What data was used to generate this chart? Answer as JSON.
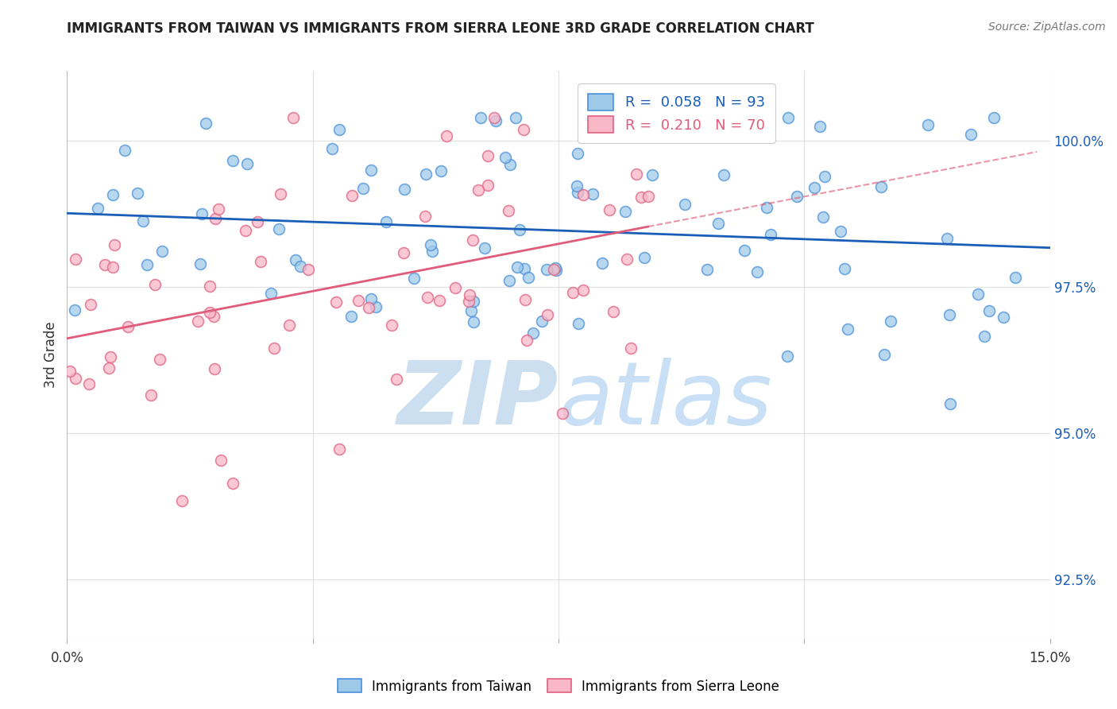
{
  "title": "IMMIGRANTS FROM TAIWAN VS IMMIGRANTS FROM SIERRA LEONE 3RD GRADE CORRELATION CHART",
  "source": "Source: ZipAtlas.com",
  "ylabel": "3rd Grade",
  "xlim": [
    0.0,
    15.0
  ],
  "ylim": [
    91.5,
    101.2
  ],
  "yticks": [
    92.5,
    95.0,
    97.5,
    100.0
  ],
  "xticks": [
    0.0,
    3.75,
    7.5,
    11.25,
    15.0
  ],
  "taiwan_color": "#9ecae8",
  "sierra_leone_color": "#f9b8c8",
  "taiwan_edge_color": "#4a90d9",
  "sierra_leone_edge_color": "#e06080",
  "taiwan_line_color": "#1a5eb8",
  "sierra_leone_line_color": "#e05c7a",
  "taiwan_R": 0.058,
  "taiwan_N": 93,
  "sierra_leone_R": 0.21,
  "sierra_leone_N": 70,
  "background_color": "#ffffff",
  "grid_color": "#e0e0e0",
  "watermark_color": "#ccdff0",
  "legend_color_taiwan": "#9ecae8",
  "legend_color_sierra_leone": "#f9b8c8",
  "ytick_color": "#1a5eb8",
  "xtick_color": "#333333"
}
